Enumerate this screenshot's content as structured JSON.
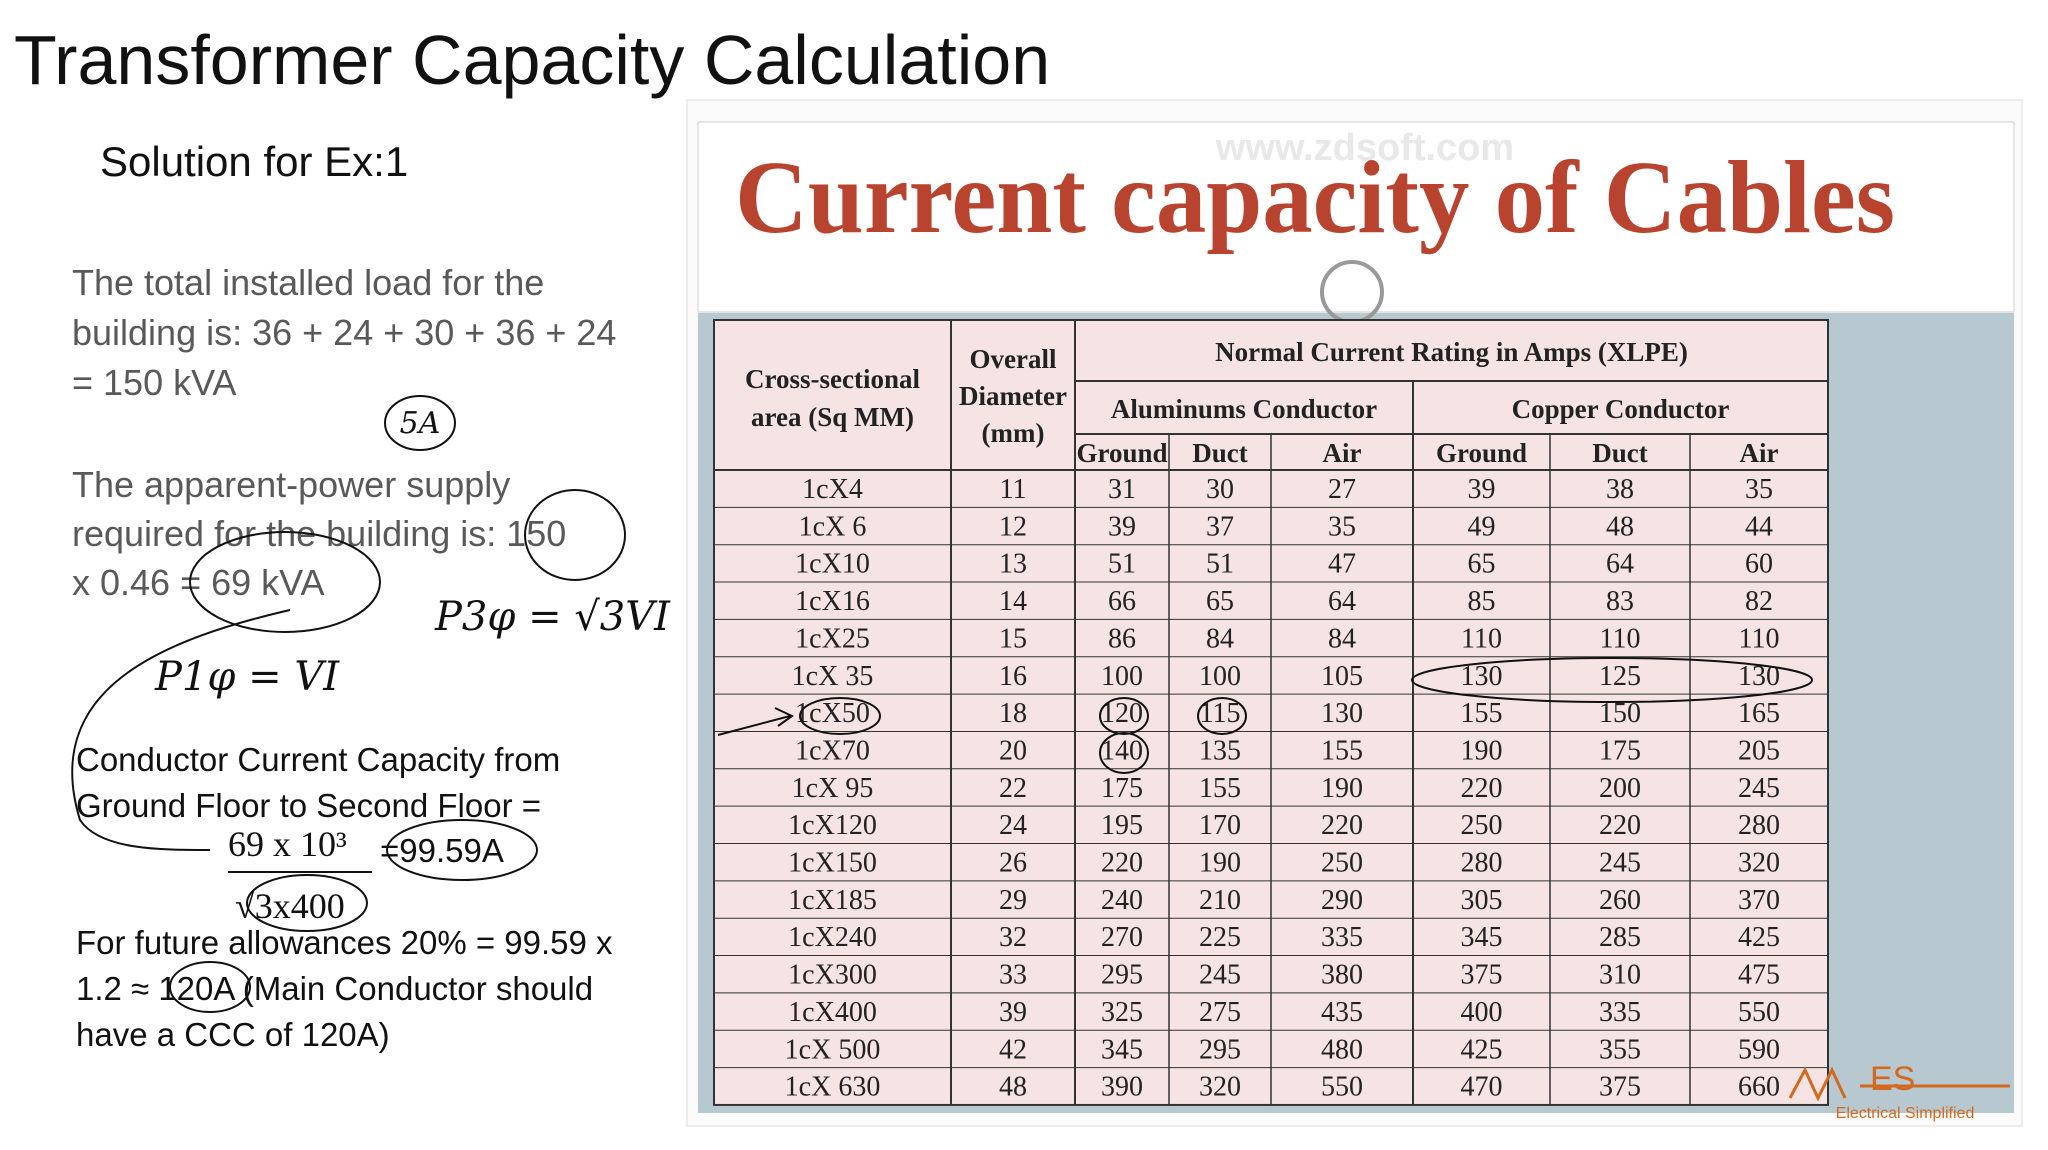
{
  "title": "Transformer Capacity Calculation",
  "subtitle": "Solution for Ex:1",
  "paragraph1": [
    "The total installed load for the",
    "building is: 36 + 24 + 30 + 36 + 24",
    "= 150 kVA"
  ],
  "paragraph2": [
    "The apparent-power supply",
    "required for the building is: 150",
    "x 0.46 = 69 kVA"
  ],
  "paragraph3": [
    "Conductor Current Capacity from",
    "Ground Floor to Second Floor ="
  ],
  "formula": {
    "numerator": "69 x 10³",
    "denominator": "√3x400",
    "result": "=99.59A"
  },
  "paragraph4": [
    "For future allowances 20% = 99.59 x",
    "1.2 ≈ 120A (Main Conductor should",
    "have a CCC of 120A)"
  ],
  "annotations": [
    "5A",
    "P1φ = VI",
    "P3φ = √3VI"
  ],
  "figure": {
    "title": "Current capacity of Cables",
    "watermark": "www.zdsoft.com",
    "logo": "ES",
    "logo_caption": "Electrical Simplified"
  },
  "table": {
    "header_col1": [
      "Cross-sectional",
      "area (Sq MM)"
    ],
    "header_col2": [
      "Overall",
      "Diameter",
      "(mm)"
    ],
    "header_group": "Normal Current Rating in Amps (XLPE)",
    "subgroups": [
      "Aluminums Conductor",
      "Copper Conductor"
    ],
    "subheaders": [
      "Ground",
      "Duct",
      "Air",
      "Ground",
      "Duct",
      "Air"
    ],
    "rows": [
      [
        "1cX4",
        11,
        31,
        30,
        27,
        39,
        38,
        35
      ],
      [
        "1cX 6",
        12,
        39,
        37,
        35,
        49,
        48,
        44
      ],
      [
        "1cX10",
        13,
        51,
        51,
        47,
        65,
        64,
        60
      ],
      [
        "1cX16",
        14,
        66,
        65,
        64,
        85,
        83,
        82
      ],
      [
        "1cX25",
        15,
        86,
        84,
        84,
        110,
        110,
        110
      ],
      [
        "1cX 35",
        16,
        100,
        100,
        105,
        130,
        125,
        130
      ],
      [
        "1cX50",
        18,
        120,
        115,
        130,
        155,
        150,
        165
      ],
      [
        "1cX70",
        20,
        140,
        135,
        155,
        190,
        175,
        205
      ],
      [
        "1cX 95",
        22,
        175,
        155,
        190,
        220,
        200,
        245
      ],
      [
        "1cX120",
        24,
        195,
        170,
        220,
        250,
        220,
        280
      ],
      [
        "1cX150",
        26,
        220,
        190,
        250,
        280,
        245,
        320
      ],
      [
        "1cX185",
        29,
        240,
        210,
        290,
        305,
        260,
        370
      ],
      [
        "1cX240",
        32,
        270,
        225,
        335,
        345,
        285,
        425
      ],
      [
        "1cX300",
        33,
        295,
        245,
        380,
        375,
        310,
        475
      ],
      [
        "1cX400",
        39,
        325,
        275,
        435,
        400,
        335,
        550
      ],
      [
        "1cX 500",
        42,
        345,
        295,
        480,
        425,
        355,
        590
      ],
      [
        "1cX 630",
        48,
        390,
        320,
        550,
        470,
        375,
        660
      ]
    ]
  }
}
